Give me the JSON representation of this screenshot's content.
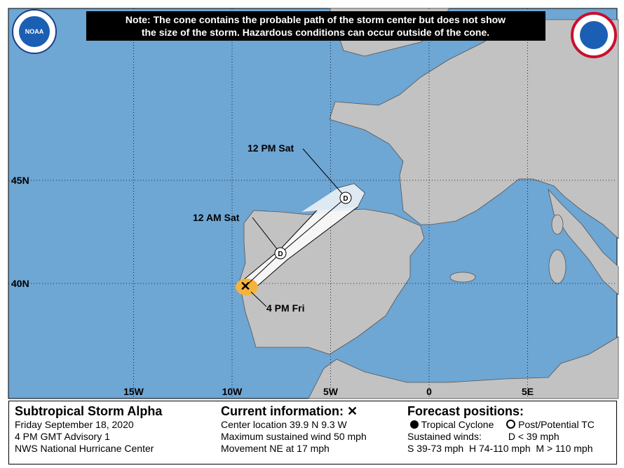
{
  "header": {
    "note": [
      "Note: The cone contains the probable path of the storm center but does not show",
      "the size of the storm. Hazardous conditions can occur outside of the cone."
    ],
    "noaa_logo": "NOAA"
  },
  "map": {
    "lat_ticks": [
      {
        "value": 45,
        "label": "45N"
      },
      {
        "value": 40,
        "label": "40N"
      }
    ],
    "lon_ticks": [
      {
        "value": -15,
        "label": "15W"
      },
      {
        "value": -10,
        "label": "10W"
      },
      {
        "value": -5,
        "label": "5W"
      },
      0,
      {
        "value": 5,
        "label": "5E"
      }
    ],
    "time_labels": [
      "12 PM Sat",
      "12 AM Sat",
      "4 PM Fri"
    ],
    "point_letters": [
      "D",
      "D"
    ],
    "current_marker": "✕"
  },
  "info": {
    "storm": {
      "title": "Subtropical Storm Alpha",
      "lines": [
        "Friday September 18, 2020",
        "4 PM GMT Advisory 1",
        "NWS National Hurricane Center"
      ]
    },
    "current": {
      "title": "Current information:",
      "symbol": "✕",
      "lines": [
        "Center location 39.9 N 9.3 W",
        "Maximum sustained wind 50 mph",
        "Movement NE at 17 mph"
      ]
    },
    "forecast": {
      "title": "Forecast positions:",
      "legend": [
        "Tropical Cyclone",
        "Post/Potential TC"
      ],
      "winds_label": "Sustained winds:",
      "categories": [
        "D < 39 mph",
        "S 39-73 mph",
        "H 74-110 mph",
        "M > 110 mph"
      ]
    }
  }
}
